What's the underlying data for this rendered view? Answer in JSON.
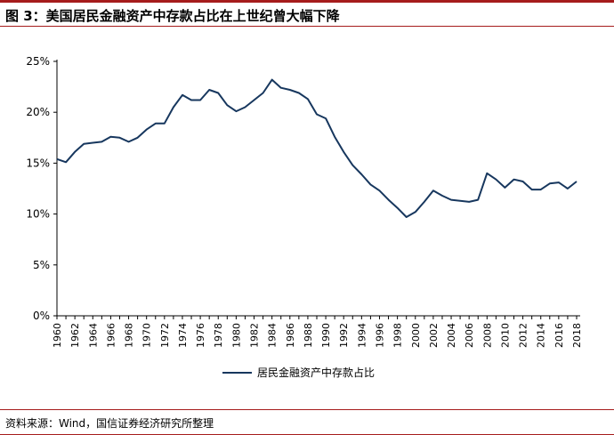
{
  "title": "图 3：美国居民金融资产中存款占比在上世纪曾大幅下降",
  "source": "资料来源：Wind，国信证券经济研究所整理",
  "colors": {
    "line": "#17375e",
    "accent": "#a61c1c",
    "axis": "#000000"
  },
  "chart_data": {
    "type": "line",
    "title": "",
    "xlabel": "",
    "ylabel": "",
    "ylim": [
      0,
      25
    ],
    "xlim": [
      1960,
      2018
    ],
    "yticks": [
      "0%",
      "5%",
      "10%",
      "15%",
      "20%",
      "25%"
    ],
    "ytick_values": [
      0,
      5,
      10,
      15,
      20,
      25
    ],
    "xticks": [
      "1960",
      "1962",
      "1964",
      "1966",
      "1968",
      "1970",
      "1972",
      "1974",
      "1976",
      "1978",
      "1980",
      "1982",
      "1984",
      "1986",
      "1988",
      "1990",
      "1992",
      "1994",
      "1996",
      "1998",
      "2000",
      "2002",
      "2004",
      "2006",
      "2008",
      "2010",
      "2012",
      "2014",
      "2016",
      "2018"
    ],
    "grid": false,
    "legend": "bottom-center",
    "series": [
      {
        "name": "居民金融资产中存款占比",
        "x": [
          1960,
          1961,
          1962,
          1963,
          1964,
          1965,
          1966,
          1967,
          1968,
          1969,
          1970,
          1971,
          1972,
          1973,
          1974,
          1975,
          1976,
          1977,
          1978,
          1979,
          1980,
          1981,
          1982,
          1983,
          1984,
          1985,
          1986,
          1987,
          1988,
          1989,
          1990,
          1991,
          1992,
          1993,
          1994,
          1995,
          1996,
          1997,
          1998,
          1999,
          2000,
          2001,
          2002,
          2003,
          2004,
          2005,
          2006,
          2007,
          2008,
          2009,
          2010,
          2011,
          2012,
          2013,
          2014,
          2015,
          2016,
          2017,
          2018
        ],
        "values": [
          15.4,
          15.1,
          16.1,
          16.9,
          17.0,
          17.1,
          17.6,
          17.5,
          17.1,
          17.5,
          18.3,
          18.9,
          18.9,
          20.5,
          21.7,
          21.2,
          21.2,
          22.2,
          21.9,
          20.7,
          20.1,
          20.5,
          21.2,
          21.9,
          23.2,
          22.4,
          22.2,
          21.9,
          21.3,
          19.8,
          19.4,
          17.6,
          16.1,
          14.8,
          13.9,
          12.9,
          12.3,
          11.4,
          10.6,
          9.7,
          10.2,
          11.2,
          12.3,
          11.8,
          11.4,
          11.3,
          11.2,
          11.4,
          14.0,
          13.4,
          12.6,
          13.4,
          13.2,
          12.4,
          12.4,
          13.0,
          13.1,
          12.5,
          13.2
        ]
      }
    ]
  }
}
